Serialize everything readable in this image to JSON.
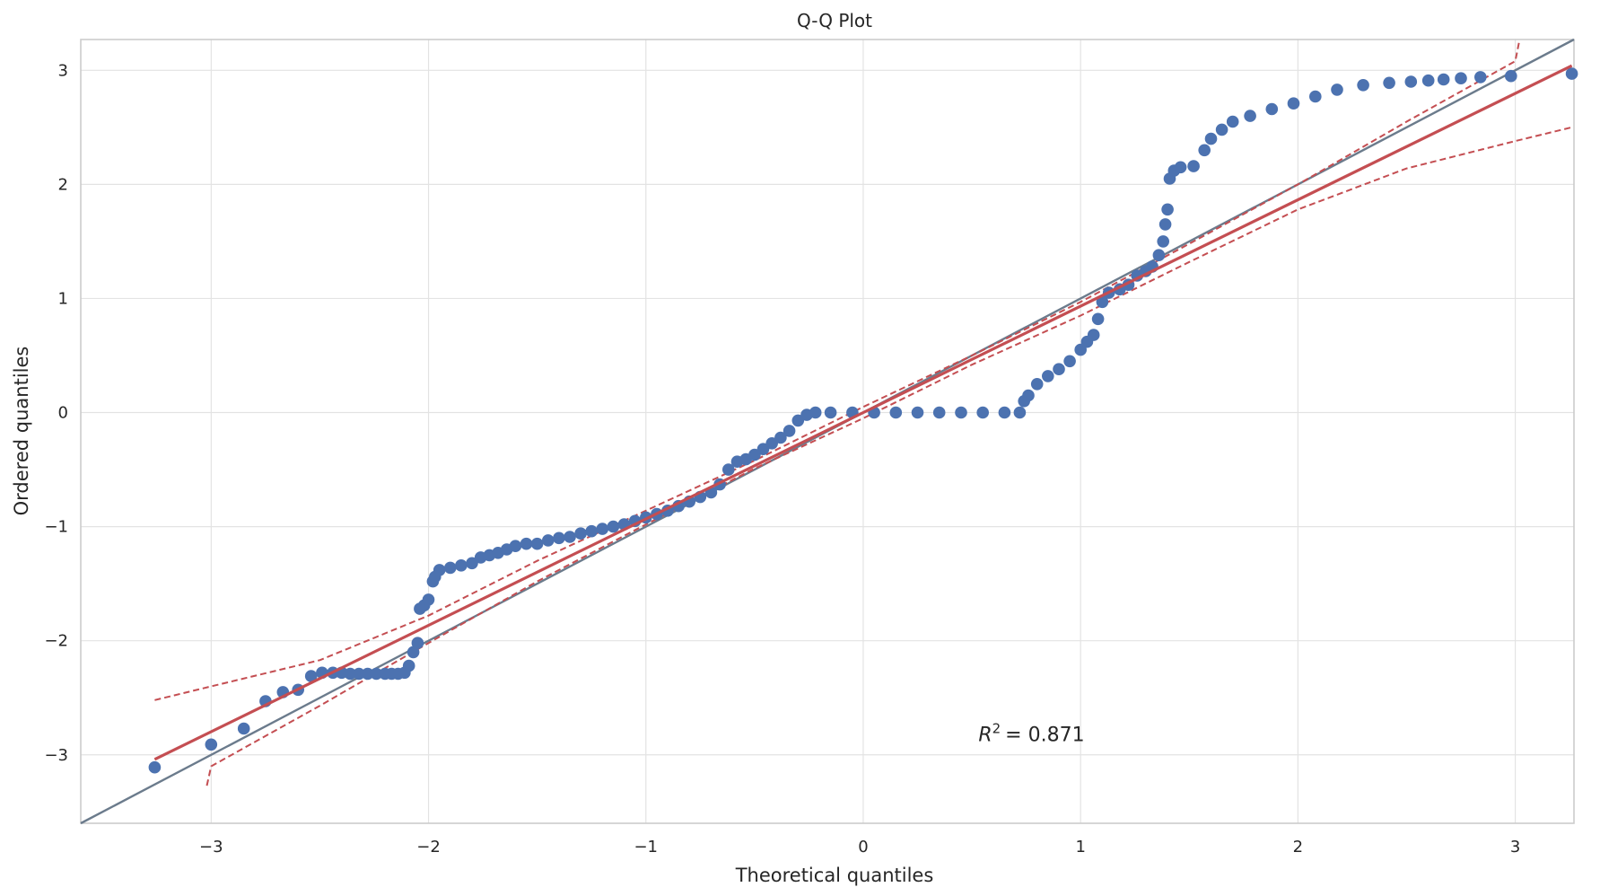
{
  "chart_data": {
    "type": "scatter",
    "title": "Q-Q Plot",
    "xlabel": "Theoretical quantiles",
    "ylabel": "Ordered quantiles",
    "xlim": [
      -3.6,
      3.27
    ],
    "ylim": [
      -3.6,
      3.27
    ],
    "x_ticks": [
      -3,
      -2,
      -1,
      0,
      1,
      2,
      3
    ],
    "y_ticks": [
      -3,
      -2,
      -1,
      0,
      1,
      2,
      3
    ],
    "x_tick_labels": [
      "−3",
      "−2",
      "−1",
      "0",
      "1",
      "2",
      "3"
    ],
    "y_tick_labels": [
      "−3",
      "−2",
      "−1",
      "0",
      "1",
      "2",
      "3"
    ],
    "grid": true,
    "annotation": {
      "label": "R",
      "superscript": "2",
      "value": "= 0.871",
      "x": 0.53,
      "y": -2.88
    },
    "reference_line": {
      "slope": 1,
      "intercept": 0,
      "color": "#6b7b8c"
    },
    "fit_line": {
      "x": [
        -3.26,
        3.26
      ],
      "y": [
        -3.04,
        3.04
      ],
      "color": "#c44e52"
    },
    "confidence_band": {
      "color": "#c44e52",
      "upper": [
        [
          -3.26,
          -2.52
        ],
        [
          -3.0,
          -2.4
        ],
        [
          -2.5,
          -2.17
        ],
        [
          -2.0,
          -1.78
        ],
        [
          -1.5,
          -1.3
        ],
        [
          -1.0,
          -0.86
        ],
        [
          -0.5,
          -0.42
        ],
        [
          0.0,
          0.05
        ],
        [
          0.5,
          0.5
        ],
        [
          1.0,
          0.97
        ],
        [
          1.5,
          1.48
        ],
        [
          2.0,
          2.0
        ],
        [
          2.5,
          2.55
        ],
        [
          3.0,
          3.08
        ],
        [
          3.02,
          3.27
        ]
      ],
      "lower": [
        [
          -3.02,
          -3.27
        ],
        [
          -3.0,
          -3.1
        ],
        [
          -2.5,
          -2.57
        ],
        [
          -2.0,
          -2.02
        ],
        [
          -1.5,
          -1.48
        ],
        [
          -1.0,
          -0.98
        ],
        [
          -0.5,
          -0.49
        ],
        [
          0.0,
          -0.05
        ],
        [
          0.5,
          0.42
        ],
        [
          1.0,
          0.85
        ],
        [
          1.5,
          1.32
        ],
        [
          2.0,
          1.78
        ],
        [
          2.5,
          2.14
        ],
        [
          3.0,
          2.38
        ],
        [
          3.26,
          2.5
        ]
      ]
    },
    "points_color": "#4c72b0",
    "points": [
      [
        -3.26,
        -3.11
      ],
      [
        -3.0,
        -2.91
      ],
      [
        -2.85,
        -2.77
      ],
      [
        -2.75,
        -2.53
      ],
      [
        -2.67,
        -2.45
      ],
      [
        -2.6,
        -2.43
      ],
      [
        -2.54,
        -2.31
      ],
      [
        -2.49,
        -2.28
      ],
      [
        -2.44,
        -2.28
      ],
      [
        -2.4,
        -2.28
      ],
      [
        -2.36,
        -2.29
      ],
      [
        -2.32,
        -2.29
      ],
      [
        -2.28,
        -2.29
      ],
      [
        -2.24,
        -2.29
      ],
      [
        -2.2,
        -2.29
      ],
      [
        -2.17,
        -2.29
      ],
      [
        -2.14,
        -2.29
      ],
      [
        -2.11,
        -2.28
      ],
      [
        -2.09,
        -2.22
      ],
      [
        -2.07,
        -2.1
      ],
      [
        -2.05,
        -2.02
      ],
      [
        -2.04,
        -1.72
      ],
      [
        -2.02,
        -1.69
      ],
      [
        -2.0,
        -1.64
      ],
      [
        -1.98,
        -1.48
      ],
      [
        -1.97,
        -1.44
      ],
      [
        -1.95,
        -1.38
      ],
      [
        -1.9,
        -1.36
      ],
      [
        -1.85,
        -1.34
      ],
      [
        -1.8,
        -1.32
      ],
      [
        -1.76,
        -1.27
      ],
      [
        -1.72,
        -1.25
      ],
      [
        -1.68,
        -1.23
      ],
      [
        -1.64,
        -1.2
      ],
      [
        -1.6,
        -1.17
      ],
      [
        -1.55,
        -1.15
      ],
      [
        -1.5,
        -1.15
      ],
      [
        -1.45,
        -1.12
      ],
      [
        -1.4,
        -1.1
      ],
      [
        -1.35,
        -1.09
      ],
      [
        -1.3,
        -1.06
      ],
      [
        -1.25,
        -1.04
      ],
      [
        -1.2,
        -1.02
      ],
      [
        -1.15,
        -1.0
      ],
      [
        -1.1,
        -0.98
      ],
      [
        -1.05,
        -0.95
      ],
      [
        -1.0,
        -0.92
      ],
      [
        -0.95,
        -0.89
      ],
      [
        -0.9,
        -0.86
      ],
      [
        -0.85,
        -0.82
      ],
      [
        -0.8,
        -0.78
      ],
      [
        -0.75,
        -0.74
      ],
      [
        -0.7,
        -0.7
      ],
      [
        -0.66,
        -0.63
      ],
      [
        -0.62,
        -0.5
      ],
      [
        -0.58,
        -0.43
      ],
      [
        -0.54,
        -0.41
      ],
      [
        -0.5,
        -0.37
      ],
      [
        -0.46,
        -0.32
      ],
      [
        -0.42,
        -0.27
      ],
      [
        -0.38,
        -0.22
      ],
      [
        -0.34,
        -0.16
      ],
      [
        -0.3,
        -0.07
      ],
      [
        -0.26,
        -0.02
      ],
      [
        -0.22,
        0.0
      ],
      [
        -0.15,
        0.0
      ],
      [
        -0.05,
        0.0
      ],
      [
        0.05,
        0.0
      ],
      [
        0.15,
        0.0
      ],
      [
        0.25,
        0.0
      ],
      [
        0.35,
        0.0
      ],
      [
        0.45,
        0.0
      ],
      [
        0.55,
        0.0
      ],
      [
        0.65,
        0.0
      ],
      [
        0.72,
        0.0
      ],
      [
        0.74,
        0.1
      ],
      [
        0.76,
        0.15
      ],
      [
        0.8,
        0.25
      ],
      [
        0.85,
        0.32
      ],
      [
        0.9,
        0.38
      ],
      [
        0.95,
        0.45
      ],
      [
        1.0,
        0.55
      ],
      [
        1.03,
        0.62
      ],
      [
        1.06,
        0.68
      ],
      [
        1.08,
        0.82
      ],
      [
        1.1,
        0.97
      ],
      [
        1.13,
        1.05
      ],
      [
        1.18,
        1.08
      ],
      [
        1.22,
        1.12
      ],
      [
        1.26,
        1.2
      ],
      [
        1.3,
        1.24
      ],
      [
        1.33,
        1.28
      ],
      [
        1.36,
        1.38
      ],
      [
        1.38,
        1.5
      ],
      [
        1.39,
        1.65
      ],
      [
        1.4,
        1.78
      ],
      [
        1.41,
        2.05
      ],
      [
        1.43,
        2.12
      ],
      [
        1.46,
        2.15
      ],
      [
        1.52,
        2.16
      ],
      [
        1.57,
        2.3
      ],
      [
        1.6,
        2.4
      ],
      [
        1.65,
        2.48
      ],
      [
        1.7,
        2.55
      ],
      [
        1.78,
        2.6
      ],
      [
        1.88,
        2.66
      ],
      [
        1.98,
        2.71
      ],
      [
        2.08,
        2.77
      ],
      [
        2.18,
        2.83
      ],
      [
        2.3,
        2.87
      ],
      [
        2.42,
        2.89
      ],
      [
        2.52,
        2.9
      ],
      [
        2.6,
        2.91
      ],
      [
        2.67,
        2.92
      ],
      [
        2.75,
        2.93
      ],
      [
        2.84,
        2.94
      ],
      [
        2.98,
        2.95
      ],
      [
        3.26,
        2.97
      ]
    ]
  }
}
